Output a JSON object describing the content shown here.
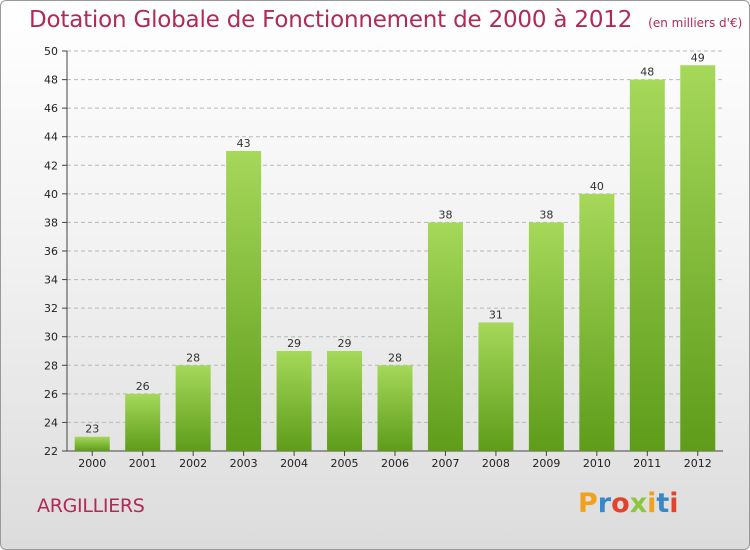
{
  "header": {
    "title": "Dotation Globale de Fonctionnement de 2000 à 2012",
    "subtitle": "(en milliers d'€)"
  },
  "footer": {
    "commune": "ARGILLIERS",
    "brand": {
      "letters": [
        "P",
        "r",
        "o",
        "x",
        "i",
        "t",
        "i"
      ],
      "colors": [
        "#f0a21a",
        "#3a87c8",
        "#e2432e",
        "#8cc63f",
        "#f0a21a",
        "#3a87c8",
        "#e2432e"
      ]
    }
  },
  "colors": {
    "bar_light": "#a6d85a",
    "bar_dark": "#5e9c1a",
    "gridline": "#b8b8b8"
  },
  "chart_data": {
    "type": "bar",
    "categories": [
      "2000",
      "2001",
      "2002",
      "2003",
      "2004",
      "2005",
      "2006",
      "2007",
      "2008",
      "2009",
      "2010",
      "2011",
      "2012"
    ],
    "values": [
      23,
      26,
      28,
      43,
      29,
      29,
      28,
      38,
      31,
      38,
      40,
      48,
      49
    ],
    "value_labels": [
      "23",
      "26",
      "28",
      "43",
      "29",
      "29",
      "28",
      "38",
      "31",
      "38",
      "40",
      "48",
      "49"
    ],
    "title": "Dotation Globale de Fonctionnement de 2000 à 2012",
    "xlabel": "",
    "ylabel": "",
    "ylim": [
      22,
      50
    ],
    "yticks": [
      22,
      24,
      26,
      28,
      30,
      32,
      34,
      36,
      38,
      40,
      42,
      44,
      46,
      48,
      50
    ],
    "ytick_labels": [
      "22",
      "24",
      "26",
      "28",
      "30",
      "32",
      "34",
      "36",
      "38",
      "40",
      "42",
      "44",
      "46",
      "48",
      "50"
    ],
    "grid": true,
    "legend": "none"
  }
}
